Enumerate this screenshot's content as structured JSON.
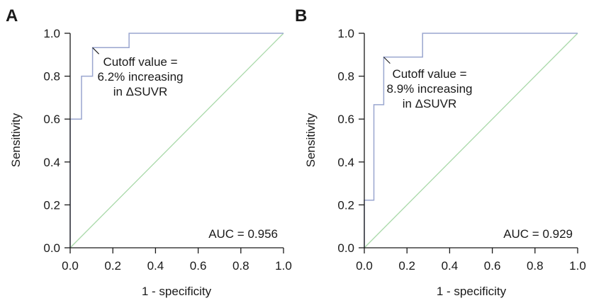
{
  "chart_data": [
    {
      "type": "line",
      "panel_label": "A",
      "xlabel": "1 - specificity",
      "ylabel": "Sensitivity",
      "xlim": [
        0.0,
        1.0
      ],
      "ylim": [
        0.0,
        1.0
      ],
      "xticks": [
        "0.0",
        "0.2",
        "0.4",
        "0.6",
        "0.8",
        "1.0"
      ],
      "yticks": [
        "0.0",
        "0.2",
        "0.4",
        "0.6",
        "0.8",
        "1.0"
      ],
      "series": [
        {
          "x": [
            0.0,
            0.0,
            0.053,
            0.053,
            0.105,
            0.105,
            0.276,
            0.276,
            1.0
          ],
          "y": [
            0.0,
            0.6,
            0.6,
            0.8,
            0.8,
            0.933,
            0.933,
            1.0,
            1.0
          ]
        },
        {
          "x": [
            0.0,
            1.0
          ],
          "y": [
            0.0,
            1.0
          ]
        }
      ],
      "annotation": {
        "lines": [
          "Cutoff value =",
          "6.2% increasing",
          "in ΔSUVR"
        ],
        "point": [
          0.105,
          0.933
        ]
      },
      "auc_text": "AUC = 0.956",
      "colors": {
        "roc": "#9aa6cf",
        "diagonal": "#a9d9a9",
        "axis": "#1a1a1a"
      },
      "grid": false
    },
    {
      "type": "line",
      "panel_label": "B",
      "xlabel": "1 - specificity",
      "ylabel": "Sensitivity",
      "xlim": [
        0.0,
        1.0
      ],
      "ylim": [
        0.0,
        1.0
      ],
      "xticks": [
        "0.0",
        "0.2",
        "0.4",
        "0.6",
        "0.8",
        "1.0"
      ],
      "yticks": [
        "0.0",
        "0.2",
        "0.4",
        "0.6",
        "0.8",
        "1.0"
      ],
      "series": [
        {
          "x": [
            0.0,
            0.0,
            0.045,
            0.045,
            0.091,
            0.091,
            0.273,
            0.273,
            1.0
          ],
          "y": [
            0.0,
            0.222,
            0.222,
            0.667,
            0.667,
            0.889,
            0.889,
            1.0,
            1.0
          ]
        },
        {
          "x": [
            0.0,
            1.0
          ],
          "y": [
            0.0,
            1.0
          ]
        }
      ],
      "annotation": {
        "lines": [
          "Cutoff value =",
          "8.9% increasing",
          "in ΔSUVR"
        ],
        "point": [
          0.091,
          0.889
        ]
      },
      "auc_text": "AUC = 0.929",
      "colors": {
        "roc": "#9aa6cf",
        "diagonal": "#a9d9a9",
        "axis": "#1a1a1a"
      },
      "grid": false
    }
  ]
}
